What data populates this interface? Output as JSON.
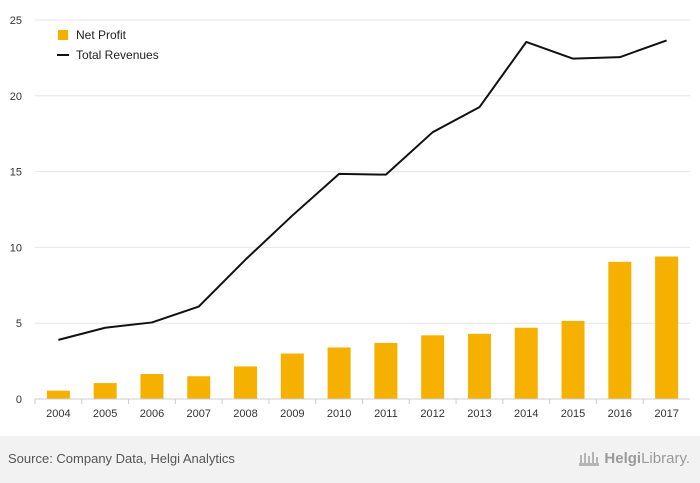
{
  "chart_data": {
    "type": "bar",
    "title": "",
    "xlabel": "",
    "ylabel": "",
    "categories": [
      "2004",
      "2005",
      "2006",
      "2007",
      "2008",
      "2009",
      "2010",
      "2011",
      "2012",
      "2013",
      "2014",
      "2015",
      "2016",
      "2017"
    ],
    "series": [
      {
        "name": "Net Profit",
        "type": "bar",
        "color": "#f5b000",
        "values": [
          0.55,
          1.05,
          1.65,
          1.5,
          2.15,
          3.0,
          3.4,
          3.7,
          4.2,
          4.3,
          4.7,
          5.15,
          9.05,
          9.4
        ]
      },
      {
        "name": "Total Revenues",
        "type": "line",
        "color": "#111111",
        "values": [
          3.9,
          4.7,
          5.05,
          6.1,
          9.2,
          12.1,
          14.85,
          14.8,
          17.6,
          19.25,
          23.55,
          22.45,
          22.55,
          23.65
        ]
      }
    ],
    "ylim": [
      0,
      25
    ],
    "yticks": [
      "0",
      "5",
      "10",
      "15",
      "20",
      "25"
    ],
    "grid": true,
    "legend_position": "top-left"
  },
  "footer": {
    "source": "Source: Company Data, Helgi Analytics",
    "logo_bold": "Helgi",
    "logo_rest": "Library."
  }
}
